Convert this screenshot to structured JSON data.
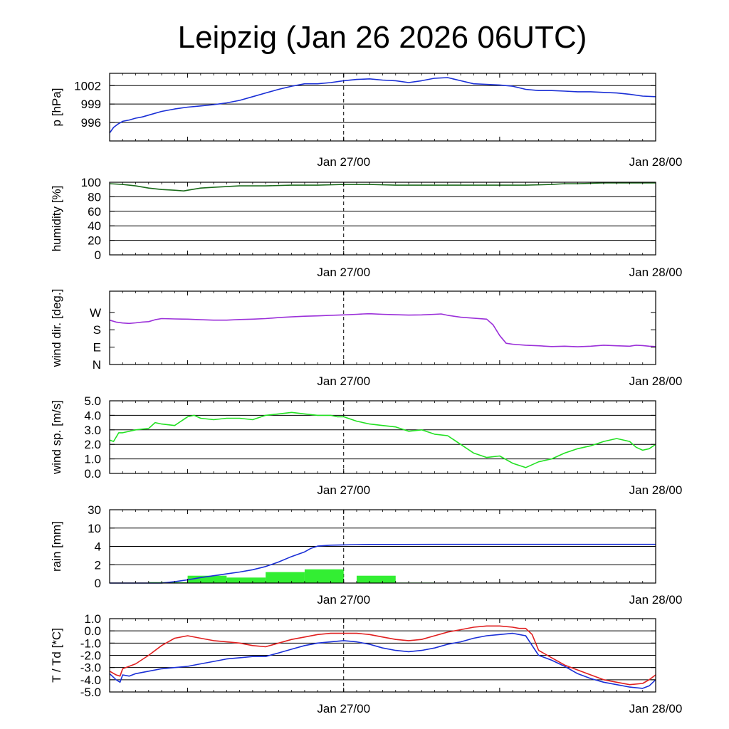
{
  "chart_data": {
    "title": "Leipzig (Jan 26 2026 06UTC)",
    "x_range_hours": [
      0,
      42
    ],
    "x_ticks": [
      {
        "hour": 18,
        "label": "Jan 27/00"
      },
      {
        "hour": 42,
        "label": "Jan 28/00"
      }
    ],
    "x_minor_ticks": [
      6,
      18,
      30
    ],
    "dashed_vline_hour": 18,
    "panels": [
      {
        "id": "pressure",
        "type": "line",
        "ylabel": "p [hPa]",
        "ylim": [
          993.0,
          1004.0
        ],
        "yticks": [
          {
            "v": 996,
            "label": "996"
          },
          {
            "v": 999,
            "label": "999"
          },
          {
            "v": 1002,
            "label": "1002"
          }
        ],
        "grid": [
          996,
          999,
          1002
        ],
        "series": [
          {
            "name": "pressure",
            "color": "#1a2fd6",
            "x": [
              0,
              0.3,
              0.6,
              1,
              1.5,
              2,
              2.5,
              3,
              4,
              5,
              6,
              7,
              8,
              9,
              10,
              11,
              12,
              13,
              14,
              15,
              16,
              17,
              18,
              19,
              20,
              21,
              22,
              23,
              24,
              25,
              26,
              27,
              28,
              29,
              30,
              31,
              32,
              33,
              34,
              35,
              36,
              37,
              38,
              39,
              40,
              41,
              42
            ],
            "y": [
              994.3,
              995.2,
              995.7,
              996.2,
              996.4,
              996.7,
              996.9,
              997.2,
              997.8,
              998.2,
              998.5,
              998.7,
              998.9,
              999.2,
              999.6,
              1000.2,
              1000.8,
              1001.4,
              1001.9,
              1002.3,
              1002.3,
              1002.5,
              1002.8,
              1003.0,
              1003.1,
              1002.9,
              1002.8,
              1002.5,
              1002.8,
              1003.2,
              1003.3,
              1002.8,
              1002.3,
              1002.2,
              1002.1,
              1001.9,
              1001.4,
              1001.2,
              1001.2,
              1001.1,
              1001.0,
              1001.0,
              1000.9,
              1000.8,
              1000.6,
              1000.3,
              1000.2
            ]
          }
        ]
      },
      {
        "id": "humidity",
        "type": "line",
        "ylabel": "humidity [%]",
        "ylim": [
          0,
          100
        ],
        "yticks": [
          {
            "v": 0,
            "label": "0"
          },
          {
            "v": 20,
            "label": "20"
          },
          {
            "v": 40,
            "label": "40"
          },
          {
            "v": 60,
            "label": "60"
          },
          {
            "v": 80,
            "label": "80"
          },
          {
            "v": 100,
            "label": "100"
          }
        ],
        "grid": [
          20,
          40,
          60,
          80
        ],
        "series": [
          {
            "name": "humidity",
            "color": "#1b6b1b",
            "x": [
              0,
              1,
              2,
              3,
              4,
              5,
              5.7,
              6,
              7,
              8,
              10,
              12,
              14,
              16,
              18,
              20,
              22,
              24,
              26,
              28,
              30,
              32,
              34,
              35,
              36,
              38,
              40,
              42
            ],
            "y": [
              98,
              97,
              95,
              92,
              90,
              89,
              88,
              89,
              92,
              93,
              95,
              95,
              96,
              96,
              97,
              97,
              96,
              96,
              96,
              96,
              96,
              96,
              97,
              98,
              98,
              99,
              99,
              99
            ]
          }
        ]
      },
      {
        "id": "wind_dir",
        "type": "line",
        "ylabel": "wind dir. [deg.]",
        "ylim": [
          0,
          380
        ],
        "yticks": [
          {
            "v": 0,
            "label": "N"
          },
          {
            "v": 90,
            "label": "E"
          },
          {
            "v": 180,
            "label": "S"
          },
          {
            "v": 270,
            "label": "W"
          }
        ],
        "grid": [],
        "series": [
          {
            "name": "wind direction",
            "color": "#9b30d9",
            "x": [
              0,
              0.5,
              1,
              1.5,
              2,
              2.5,
              3,
              3.5,
              4,
              5,
              6,
              7,
              8,
              9,
              10,
              11,
              12,
              13,
              14,
              15,
              16,
              17,
              18,
              19,
              19.5,
              20,
              21,
              22,
              23,
              24,
              25,
              25.5,
              26,
              27,
              28,
              29,
              29.5,
              30,
              30.5,
              31,
              32,
              33,
              34,
              35,
              36,
              37,
              38,
              39,
              40,
              40.5,
              41,
              41.5,
              42
            ],
            "y": [
              230,
              220,
              215,
              213,
              216,
              220,
              222,
              232,
              238,
              236,
              235,
              232,
              230,
              230,
              233,
              235,
              238,
              243,
              247,
              250,
              252,
              255,
              257,
              260,
              262,
              263,
              260,
              258,
              256,
              257,
              260,
              262,
              255,
              245,
              240,
              235,
              205,
              150,
              110,
              105,
              100,
              97,
              93,
              95,
              92,
              95,
              100,
              97,
              95,
              100,
              98,
              95,
              93
            ]
          }
        ]
      },
      {
        "id": "wind_speed",
        "type": "line",
        "ylabel": "wind sp. [m/s]",
        "ylim": [
          0,
          5.0
        ],
        "yticks": [
          {
            "v": 0,
            "label": "0.0"
          },
          {
            "v": 1,
            "label": "1.0"
          },
          {
            "v": 2,
            "label": "2.0"
          },
          {
            "v": 3,
            "label": "3.0"
          },
          {
            "v": 4,
            "label": "4.0"
          },
          {
            "v": 5,
            "label": "5.0"
          }
        ],
        "grid": [
          1,
          2,
          3,
          4
        ],
        "series": [
          {
            "name": "wind speed",
            "color": "#22e022",
            "x": [
              0,
              0.3,
              0.7,
              1,
              2,
              3,
              3.5,
              4,
              5,
              6,
              6.5,
              7,
              8,
              9,
              10,
              11,
              12,
              13,
              14,
              15,
              16,
              17,
              17.5,
              18,
              19,
              20,
              21,
              22,
              23,
              24,
              25,
              26,
              27,
              28,
              29,
              30,
              31,
              32,
              33,
              34,
              35,
              36,
              37,
              38,
              39,
              40,
              40.5,
              41,
              41.5,
              42
            ],
            "y": [
              2.3,
              2.2,
              2.8,
              2.8,
              3.0,
              3.1,
              3.5,
              3.4,
              3.3,
              3.9,
              4.0,
              3.8,
              3.7,
              3.8,
              3.8,
              3.7,
              4.0,
              4.1,
              4.2,
              4.1,
              4.0,
              4.0,
              3.9,
              3.9,
              3.6,
              3.4,
              3.3,
              3.2,
              2.9,
              3.0,
              2.7,
              2.6,
              2.0,
              1.4,
              1.1,
              1.2,
              0.7,
              0.4,
              0.8,
              1.0,
              1.4,
              1.7,
              1.9,
              2.2,
              2.4,
              2.2,
              1.8,
              1.6,
              1.7,
              2.0
            ]
          }
        ]
      },
      {
        "id": "rain",
        "type": "bar+line",
        "ylabel": "rain [mm]",
        "scale": "mapped",
        "scale_points": [
          [
            0,
            0
          ],
          [
            2,
            1
          ],
          [
            4,
            2
          ],
          [
            10,
            3
          ],
          [
            30,
            4
          ]
        ],
        "yticks": [
          {
            "v": 0,
            "label": "0"
          },
          {
            "v": 2,
            "label": "2"
          },
          {
            "v": 4,
            "label": "4"
          },
          {
            "v": 10,
            "label": "10"
          },
          {
            "v": 30,
            "label": "30"
          }
        ],
        "grid": [
          2,
          4,
          10
        ],
        "bars": {
          "color": "#33ee33",
          "x0": [
            3,
            6,
            9,
            12,
            15,
            19,
            22
          ],
          "x1": [
            6,
            9,
            12,
            15,
            18,
            22,
            25
          ],
          "values": [
            0.1,
            0.8,
            0.6,
            1.2,
            1.5,
            0.8,
            0.05
          ]
        },
        "series": [
          {
            "name": "accumulated rain",
            "color": "#1a2fd6",
            "x": [
              0,
              4,
              5,
              6,
              7,
              8,
              9,
              10,
              11,
              12,
              13,
              14,
              15,
              15.5,
              16,
              17,
              18,
              19,
              20,
              21,
              22,
              25,
              30,
              35,
              40,
              42
            ],
            "y": [
              0,
              0,
              0.15,
              0.35,
              0.6,
              0.8,
              1.0,
              1.2,
              1.45,
              1.8,
              2.3,
              2.9,
              3.4,
              3.8,
              4.1,
              4.4,
              4.5,
              4.58,
              4.62,
              4.63,
              4.64,
              4.65,
              4.65,
              4.65,
              4.65,
              4.65
            ]
          }
        ]
      },
      {
        "id": "temperature",
        "type": "line",
        "ylabel": "T / Td [*C]",
        "ylim": [
          -5.0,
          1.0
        ],
        "yticks": [
          {
            "v": -5,
            "label": "-5.0"
          },
          {
            "v": -4,
            "label": "-4.0"
          },
          {
            "v": -3,
            "label": "-3.0"
          },
          {
            "v": -2,
            "label": "-2.0"
          },
          {
            "v": -1,
            "label": "-1.0"
          },
          {
            "v": 0,
            "label": "0.0"
          },
          {
            "v": 1,
            "label": "1.0"
          }
        ],
        "grid": [
          -4,
          -3,
          -2,
          -1,
          0
        ],
        "series": [
          {
            "name": "T",
            "color": "#e02020",
            "x": [
              0,
              0.5,
              0.8,
              1,
              2,
              3,
              4,
              5,
              6,
              7,
              8,
              9,
              10,
              11,
              12,
              13,
              14,
              15,
              16,
              17,
              18,
              19,
              20,
              21,
              22,
              23,
              24,
              25,
              26,
              27,
              28,
              29,
              30,
              31,
              31.5,
              32,
              32.5,
              33,
              34,
              35,
              36,
              37,
              38,
              39,
              40,
              41,
              41.5,
              42
            ],
            "y": [
              -3.3,
              -3.6,
              -3.7,
              -3.1,
              -2.7,
              -2.0,
              -1.2,
              -0.6,
              -0.4,
              -0.6,
              -0.8,
              -0.9,
              -1.0,
              -1.2,
              -1.3,
              -1.0,
              -0.7,
              -0.5,
              -0.3,
              -0.2,
              -0.2,
              -0.2,
              -0.3,
              -0.5,
              -0.7,
              -0.8,
              -0.7,
              -0.4,
              -0.1,
              0.1,
              0.3,
              0.4,
              0.4,
              0.3,
              0.2,
              0.2,
              -0.3,
              -1.6,
              -2.2,
              -2.8,
              -3.2,
              -3.6,
              -4.0,
              -4.2,
              -4.4,
              -4.3,
              -4.0,
              -3.6
            ]
          },
          {
            "name": "Td",
            "color": "#1a2fd6",
            "x": [
              0,
              0.5,
              0.8,
              1,
              1.5,
              2,
              3,
              4,
              5,
              6,
              7,
              8,
              9,
              10,
              11,
              12,
              13,
              14,
              15,
              16,
              17,
              18,
              19,
              20,
              21,
              22,
              23,
              24,
              25,
              26,
              27,
              28,
              29,
              30,
              31,
              31.5,
              32,
              32.5,
              33,
              34,
              35,
              36,
              37,
              38,
              39,
              40,
              41,
              41.5,
              42
            ],
            "y": [
              -3.5,
              -4.0,
              -4.2,
              -3.6,
              -3.7,
              -3.5,
              -3.3,
              -3.1,
              -3.0,
              -2.9,
              -2.7,
              -2.5,
              -2.3,
              -2.2,
              -2.1,
              -2.1,
              -1.8,
              -1.5,
              -1.2,
              -1.0,
              -0.9,
              -0.8,
              -0.9,
              -1.1,
              -1.4,
              -1.6,
              -1.7,
              -1.6,
              -1.4,
              -1.1,
              -0.9,
              -0.6,
              -0.4,
              -0.3,
              -0.2,
              -0.3,
              -0.4,
              -1.2,
              -2.0,
              -2.4,
              -2.9,
              -3.5,
              -3.9,
              -4.2,
              -4.4,
              -4.6,
              -4.7,
              -4.5,
              -4.0
            ]
          }
        ]
      }
    ]
  }
}
